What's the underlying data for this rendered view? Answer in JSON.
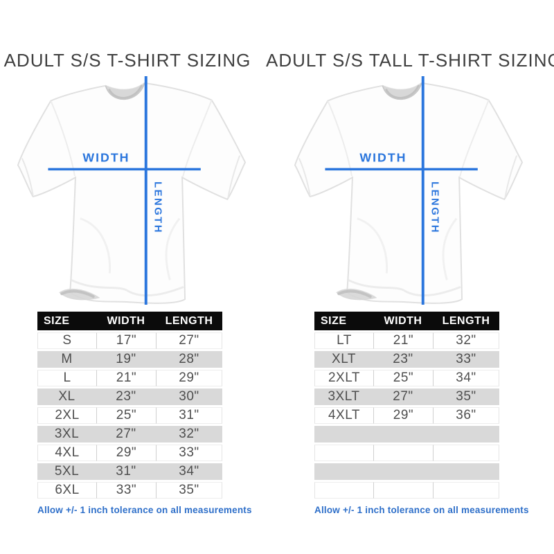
{
  "colors": {
    "accent_blue": "#2b76dd",
    "note_blue": "#2e6fc9",
    "header_bg": "#0b0b0b",
    "header_text": "#ffffff",
    "row_gray": "#d9d9d9",
    "body_text": "#4e4e4e",
    "title_text": "#3f3f3f"
  },
  "diagram_labels": {
    "width": "WIDTH",
    "length": "LENGTH"
  },
  "note": "Allow +/- 1 inch tolerance on all measurements",
  "chart_data": [
    {
      "type": "table",
      "title": "ADULT S/S T-SHIRT SIZING",
      "columns": [
        "SIZE",
        "WIDTH",
        "LENGTH"
      ],
      "rows": [
        [
          "S",
          "17\"",
          "27\""
        ],
        [
          "M",
          "19\"",
          "28\""
        ],
        [
          "L",
          "21\"",
          "29\""
        ],
        [
          "XL",
          "23\"",
          "30\""
        ],
        [
          "2XL",
          "25\"",
          "31\""
        ],
        [
          "3XL",
          "27\"",
          "32\""
        ],
        [
          "4XL",
          "29\"",
          "33\""
        ],
        [
          "5XL",
          "31\"",
          "34\""
        ],
        [
          "6XL",
          "33\"",
          "35\""
        ]
      ]
    },
    {
      "type": "table",
      "title": "ADULT S/S TALL T-SHIRT SIZING",
      "columns": [
        "SIZE",
        "WIDTH",
        "LENGTH"
      ],
      "rows": [
        [
          "LT",
          "21\"",
          "32\""
        ],
        [
          "XLT",
          "23\"",
          "33\""
        ],
        [
          "2XLT",
          "25\"",
          "34\""
        ],
        [
          "3XLT",
          "27\"",
          "35\""
        ],
        [
          "4XLT",
          "29\"",
          "36\""
        ],
        [
          "",
          "",
          ""
        ],
        [
          "",
          "",
          ""
        ],
        [
          "",
          "",
          ""
        ],
        [
          "",
          "",
          ""
        ]
      ]
    }
  ]
}
